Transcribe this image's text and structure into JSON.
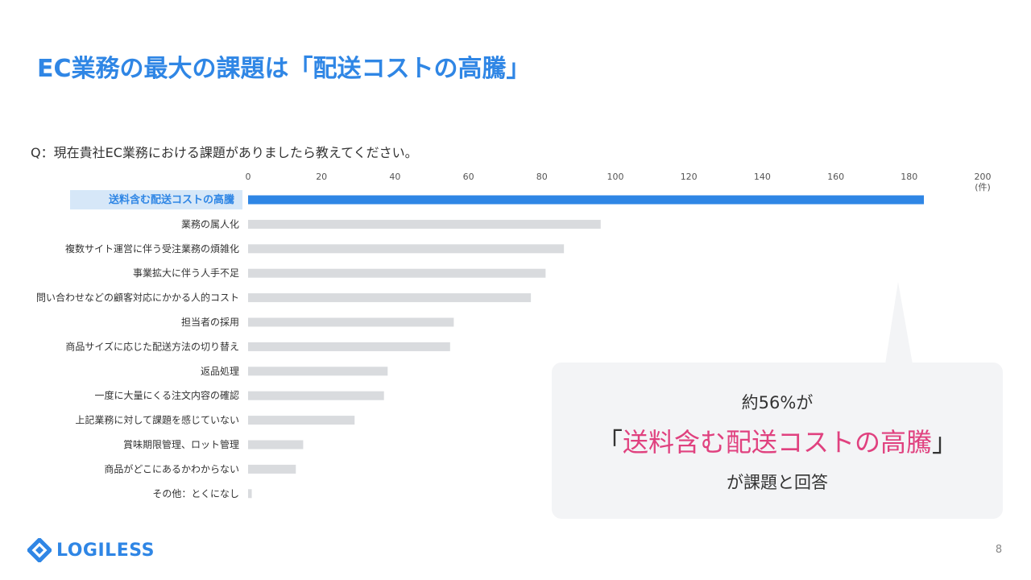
{
  "title": "EC業務の最大の課題は「配送コストの高騰」",
  "question": "Q：現在貴社EC業務における課題がありましたら教えてください。",
  "chart_data": {
    "type": "bar",
    "orientation": "horizontal",
    "categories": [
      "送料含む配送コストの高騰",
      "業務の属人化",
      "複数サイト運営に伴う受注業務の煩雑化",
      "事業拡大に伴う人手不足",
      "問い合わせなどの顧客対応にかかる人的コスト",
      "担当者の採用",
      "商品サイズに応じた配送方法の切り替え",
      "返品処理",
      "一度に大量にくる注文内容の確認",
      "上記業務に対して課題を感じていない",
      "賞味期限管理、ロット管理",
      "商品がどこにあるかわからない",
      "その他：とくになし"
    ],
    "values": [
      184,
      96,
      86,
      81,
      77,
      56,
      55,
      38,
      37,
      29,
      15,
      13,
      1
    ],
    "xlim": [
      0,
      200
    ],
    "xticks": [
      0,
      20,
      40,
      60,
      80,
      100,
      120,
      140,
      160,
      180,
      200
    ],
    "unit_label": "(件)",
    "highlight_index": 0,
    "colors": {
      "highlight": "#2f86e5",
      "normal": "#d9dbde",
      "highlight_label_bg": "#d6e7f8",
      "highlight_label_text": "#2f86e5"
    }
  },
  "callout": {
    "line1": "約56%が",
    "open_bracket": "「",
    "accent_text": "送料含む配送コストの高騰",
    "close_bracket": "」",
    "line3": "が課題と回答",
    "accent_color": "#e0417f"
  },
  "logo": {
    "text": "LOGILESS",
    "icon": "diamond-logo-icon"
  },
  "page_number": "8"
}
